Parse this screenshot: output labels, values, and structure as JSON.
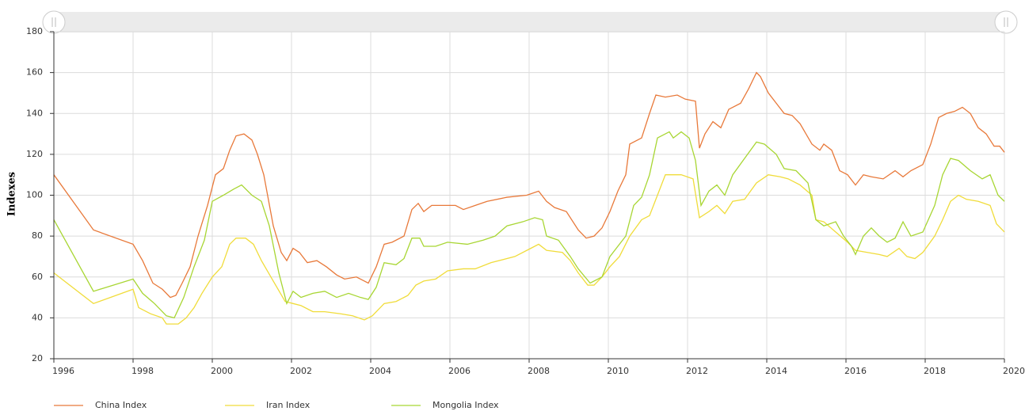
{
  "chart_data": {
    "type": "line",
    "y_label": "Indexes",
    "xlim": [
      1996,
      2020
    ],
    "xticks": [
      1996,
      1998,
      2000,
      2002,
      2004,
      2006,
      2008,
      2010,
      2012,
      2014,
      2016,
      2018,
      2020
    ],
    "ylim": [
      20,
      180
    ],
    "yticks": [
      20,
      40,
      60,
      80,
      100,
      120,
      140,
      160,
      180
    ],
    "grid": true,
    "legend": "bottom",
    "series": [
      {
        "name": "China Index",
        "color": "#e8793a",
        "x": [
          1996,
          1997,
          1998,
          1998.24,
          1998.5,
          1998.74,
          1998.94,
          1999.08,
          1999.24,
          1999.44,
          1999.64,
          1999.88,
          2000.08,
          2000.28,
          2000.44,
          2000.6,
          2000.8,
          2001,
          2001.14,
          2001.3,
          2001.54,
          2001.74,
          2001.88,
          2002.04,
          2002.2,
          2002.4,
          2002.64,
          2002.88,
          2003.14,
          2003.34,
          2003.64,
          2003.84,
          2003.94,
          2004.14,
          2004.34,
          2004.54,
          2004.84,
          2005.04,
          2005.2,
          2005.34,
          2005.54,
          2006.14,
          2006.34,
          2006.64,
          2006.94,
          2007.44,
          2007.94,
          2008.24,
          2008.44,
          2008.64,
          2008.94,
          2009.24,
          2009.44,
          2009.64,
          2009.84,
          2010.04,
          2010.24,
          2010.44,
          2010.54,
          2010.84,
          2011.04,
          2011.2,
          2011.44,
          2011.74,
          2011.94,
          2012.2,
          2012.3,
          2012.44,
          2012.64,
          2012.84,
          2013.04,
          2013.34,
          2013.54,
          2013.74,
          2013.84,
          2014.04,
          2014.24,
          2014.44,
          2014.64,
          2014.84,
          2015.14,
          2015.34,
          2015.44,
          2015.64,
          2015.84,
          2016.04,
          2016.24,
          2016.44,
          2016.64,
          2016.94,
          2017.24,
          2017.44,
          2017.64,
          2017.94,
          2018.14,
          2018.34,
          2018.54,
          2018.74,
          2018.94,
          2019.14,
          2019.34,
          2019.54,
          2019.74,
          2019.88,
          2020
        ],
        "values": [
          110,
          83,
          76,
          68,
          57,
          54,
          50,
          51,
          57,
          65,
          80,
          95,
          110,
          113,
          122,
          129,
          130,
          127,
          120,
          110,
          85,
          72,
          68,
          74,
          72,
          67,
          68,
          65,
          61,
          59,
          60,
          58,
          57,
          65,
          76,
          77,
          80,
          93,
          96,
          92,
          95,
          95,
          93,
          95,
          97,
          99,
          100,
          102,
          97,
          94,
          92,
          83,
          79,
          80,
          84,
          92,
          102,
          110,
          125,
          128,
          140,
          149,
          148,
          149,
          147,
          146,
          123,
          130,
          136,
          133,
          142,
          145,
          152,
          160,
          158,
          150,
          145,
          140,
          139,
          135,
          125,
          122,
          125,
          122,
          112,
          110,
          105,
          110,
          109,
          108,
          112,
          109,
          112,
          115,
          125,
          138,
          140,
          141,
          143,
          140,
          133,
          130,
          124,
          124,
          121
        ]
      },
      {
        "name": "Iran Index",
        "color": "#f0dc3a",
        "x": [
          1996,
          1997,
          1998,
          1998.14,
          1998.44,
          1998.74,
          1998.84,
          1999.14,
          1999.34,
          1999.54,
          1999.74,
          2000,
          2000.24,
          2000.44,
          2000.6,
          2000.84,
          2001.04,
          2001.24,
          2001.54,
          2001.84,
          2002.04,
          2002.24,
          2002.54,
          2002.84,
          2003.24,
          2003.54,
          2003.84,
          2004.04,
          2004.34,
          2004.64,
          2004.94,
          2005.14,
          2005.34,
          2005.64,
          2005.94,
          2006.34,
          2006.64,
          2007.04,
          2007.64,
          2008.04,
          2008.24,
          2008.44,
          2008.84,
          2009.04,
          2009.24,
          2009.48,
          2009.64,
          2009.84,
          2010.04,
          2010.28,
          2010.54,
          2010.84,
          2011.04,
          2011.24,
          2011.44,
          2011.84,
          2012.14,
          2012.3,
          2012.54,
          2012.74,
          2012.94,
          2013.14,
          2013.44,
          2013.74,
          2014.04,
          2014.34,
          2014.54,
          2014.84,
          2015.14,
          2015.24,
          2015.44,
          2015.74,
          2016.04,
          2016.24,
          2016.54,
          2016.84,
          2017.04,
          2017.34,
          2017.54,
          2017.74,
          2017.94,
          2018.24,
          2018.44,
          2018.64,
          2018.84,
          2019.04,
          2019.34,
          2019.64,
          2019.8,
          2020
        ],
        "values": [
          62,
          47,
          54,
          45,
          42,
          40,
          37,
          37,
          40,
          45,
          52,
          60,
          65,
          76,
          79,
          79,
          76,
          68,
          58,
          48,
          47,
          46,
          43,
          43,
          42,
          41,
          39,
          41,
          47,
          48,
          51,
          56,
          58,
          59,
          63,
          64,
          64,
          67,
          70,
          74,
          76,
          73,
          72,
          68,
          62,
          56,
          56,
          60,
          65,
          70,
          80,
          88,
          90,
          100,
          110,
          110,
          108,
          89,
          92,
          95,
          91,
          97,
          98,
          106,
          110,
          109,
          108,
          105,
          100,
          88,
          87,
          82,
          77,
          73,
          72,
          71,
          70,
          74,
          70,
          69,
          72,
          80,
          88,
          97,
          100,
          98,
          97,
          95,
          86,
          82
        ]
      },
      {
        "name": "Mongolia Index",
        "color": "#a8d633",
        "x": [
          1996,
          1997,
          1998,
          1998.24,
          1998.54,
          1998.84,
          1999.04,
          1999.28,
          1999.54,
          1999.8,
          2000,
          2000.28,
          2000.54,
          2000.74,
          2001,
          2001.24,
          2001.44,
          2001.68,
          2001.88,
          2002.04,
          2002.24,
          2002.54,
          2002.84,
          2003.14,
          2003.44,
          2003.74,
          2003.94,
          2004.14,
          2004.34,
          2004.64,
          2004.84,
          2005.04,
          2005.24,
          2005.34,
          2005.64,
          2005.94,
          2006.44,
          2006.84,
          2007.14,
          2007.44,
          2007.84,
          2008.14,
          2008.34,
          2008.44,
          2008.74,
          2009.04,
          2009.24,
          2009.54,
          2009.84,
          2010.04,
          2010.24,
          2010.44,
          2010.64,
          2010.84,
          2011.04,
          2011.24,
          2011.54,
          2011.64,
          2011.84,
          2012.04,
          2012.2,
          2012.34,
          2012.54,
          2012.74,
          2012.94,
          2013.14,
          2013.44,
          2013.74,
          2013.94,
          2014.24,
          2014.44,
          2014.74,
          2015.04,
          2015.24,
          2015.44,
          2015.74,
          2015.94,
          2016.14,
          2016.24,
          2016.44,
          2016.64,
          2016.84,
          2017.04,
          2017.24,
          2017.44,
          2017.64,
          2017.94,
          2018.24,
          2018.44,
          2018.64,
          2018.84,
          2019.14,
          2019.44,
          2019.64,
          2019.84,
          2020
        ],
        "values": [
          88,
          53,
          59,
          52,
          47,
          41,
          40,
          50,
          65,
          78,
          97,
          100,
          103,
          105,
          100,
          97,
          85,
          62,
          47,
          53,
          50,
          52,
          53,
          50,
          52,
          50,
          49,
          55,
          67,
          66,
          69,
          79,
          79,
          75,
          75,
          77,
          76,
          78,
          80,
          85,
          87,
          89,
          88,
          80,
          78,
          70,
          64,
          57,
          60,
          70,
          75,
          80,
          95,
          99,
          110,
          128,
          131,
          128,
          131,
          128,
          117,
          95,
          102,
          105,
          100,
          110,
          118,
          126,
          125,
          120,
          113,
          112,
          106,
          88,
          85,
          87,
          80,
          75,
          71,
          80,
          84,
          80,
          77,
          79,
          87,
          80,
          82,
          95,
          110,
          118,
          117,
          112,
          108,
          110,
          100,
          97
        ]
      }
    ]
  }
}
